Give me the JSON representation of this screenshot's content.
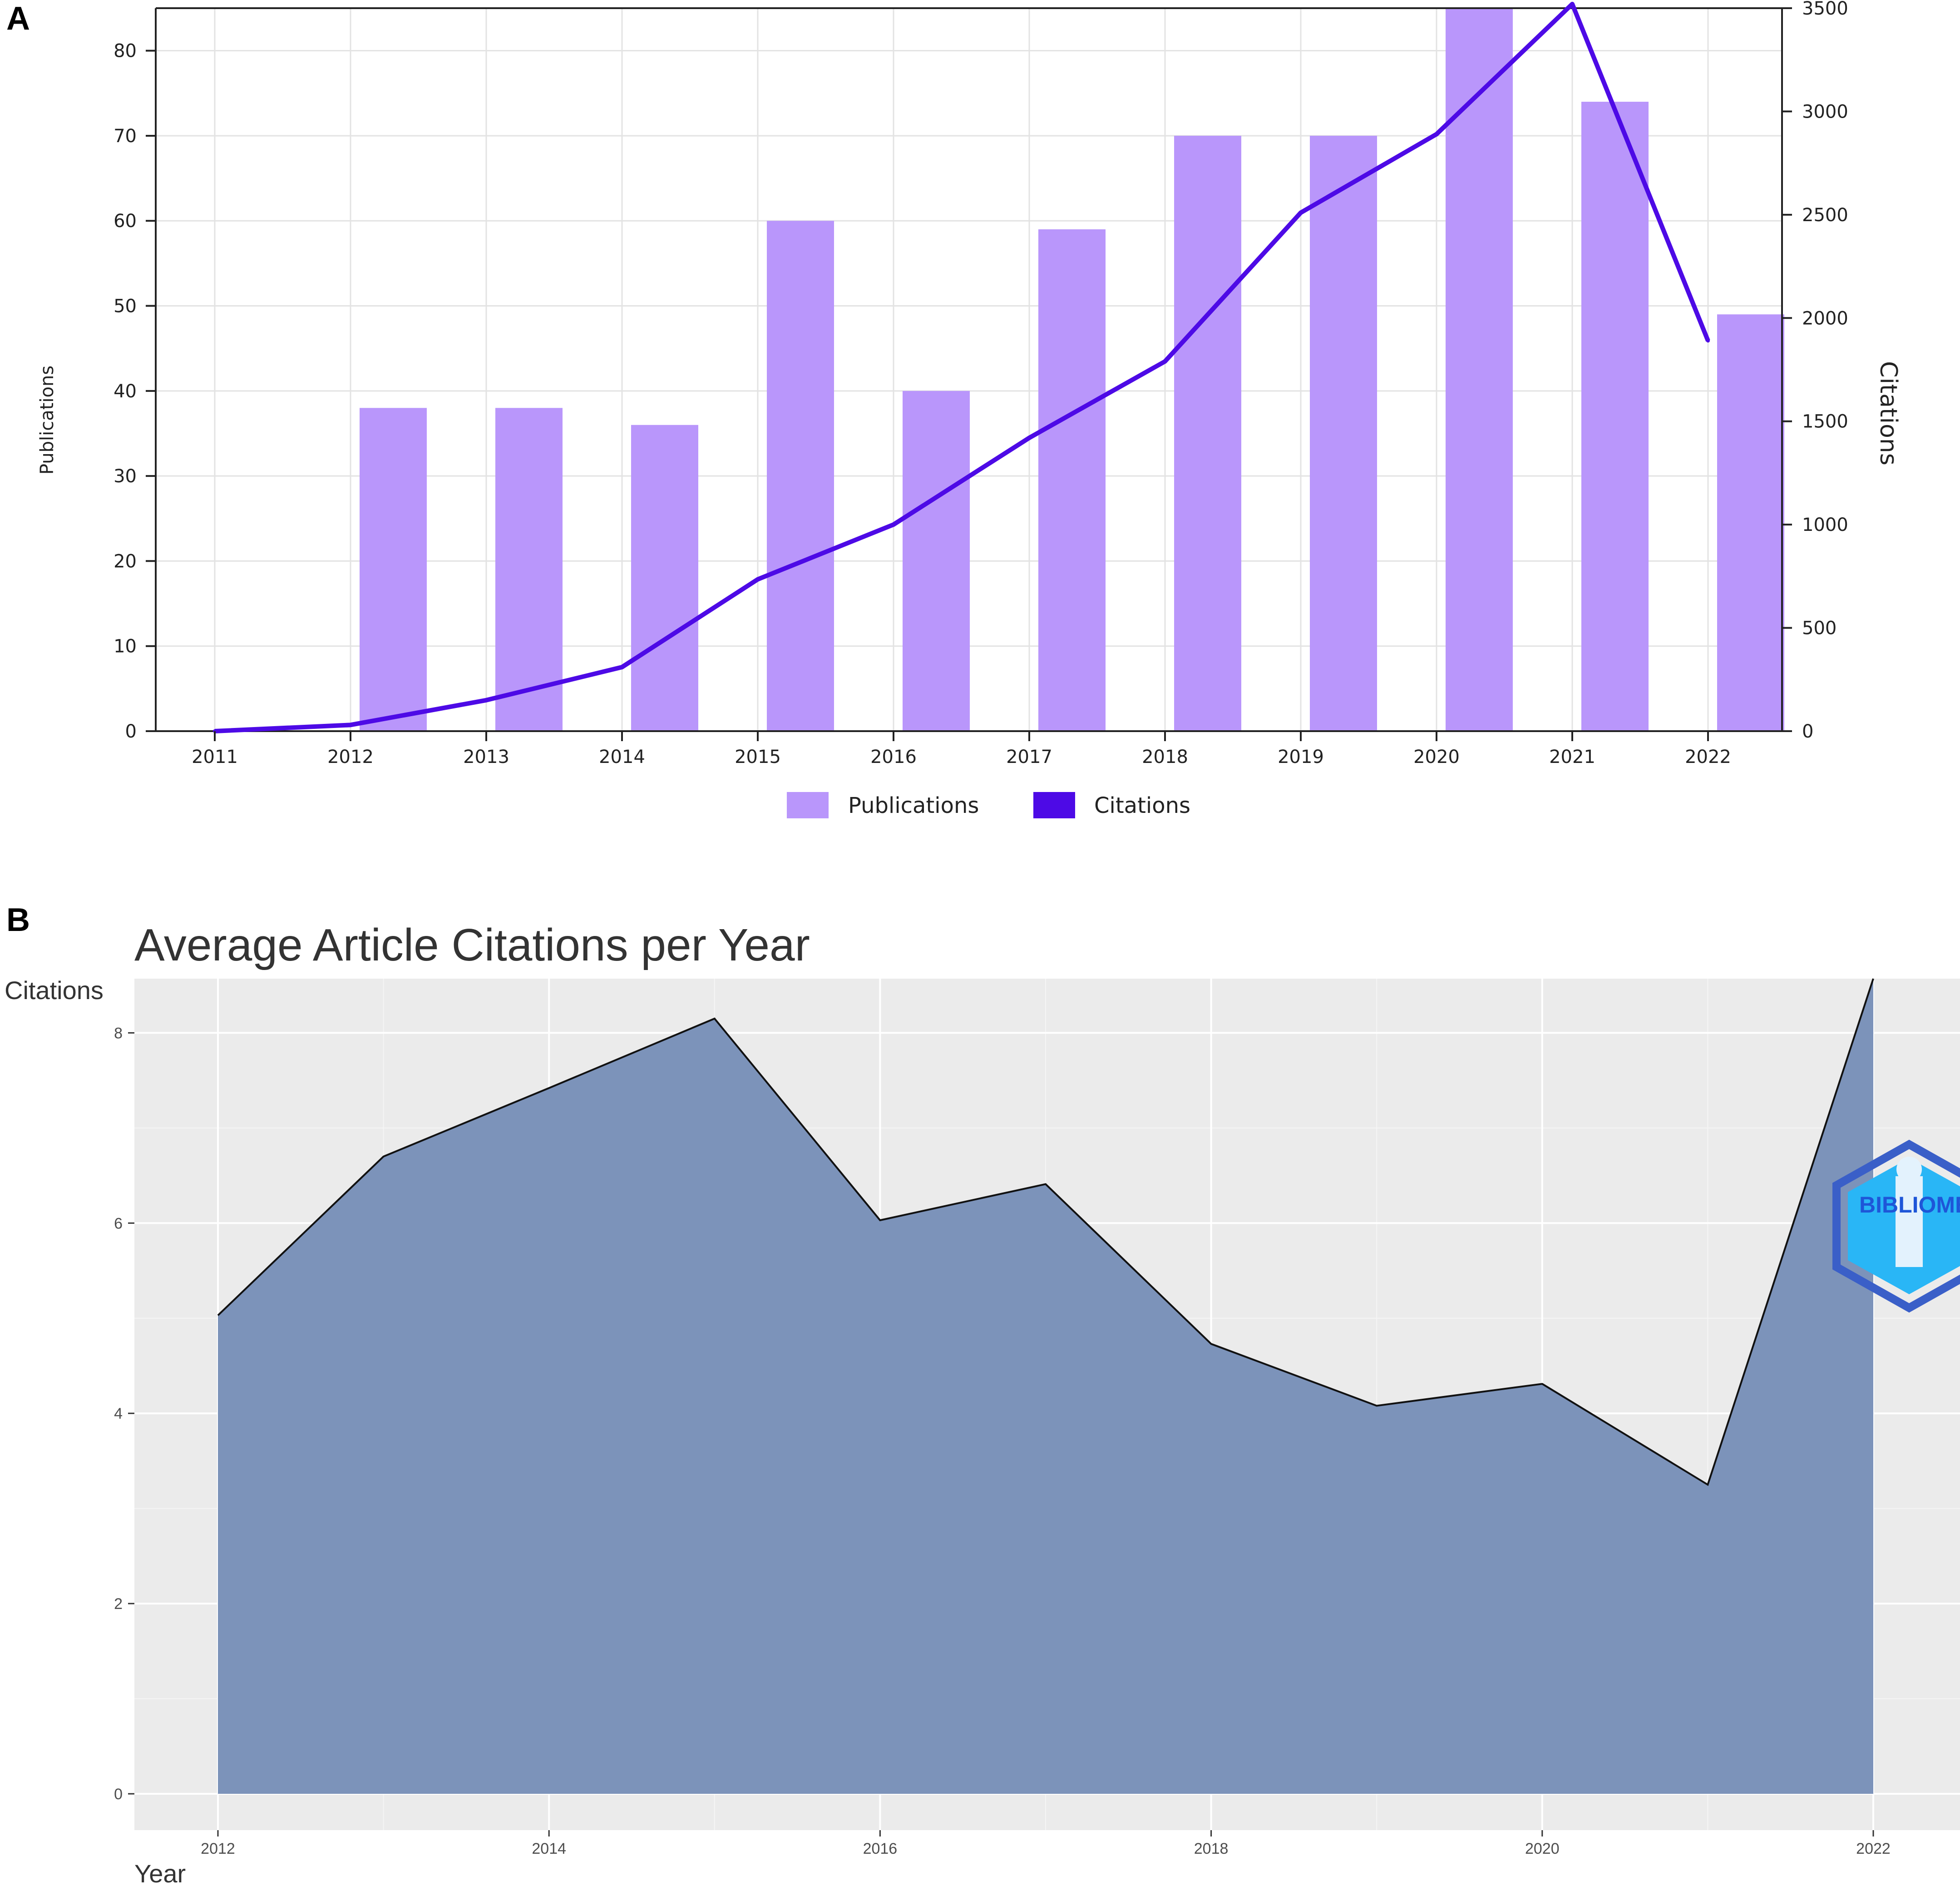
{
  "panels": {
    "a_label": "A",
    "b_label": "B"
  },
  "colors": {
    "publications": "#b996fb",
    "citations": "#4d0ae6",
    "area_fill": "#7890b8",
    "panel_bg": "#ebebeb",
    "logo": "#1e88e5"
  },
  "logo": {
    "text": "BIBLIOME",
    "icon": "biblioshiny-logo-icon"
  },
  "chart_data": [
    {
      "type": "bar",
      "title": "",
      "categories": [
        "2011",
        "2012",
        "2013",
        "2014",
        "2015",
        "2016",
        "2017",
        "2018",
        "2019",
        "2020",
        "2021",
        "2022"
      ],
      "series": [
        {
          "name": "Publications",
          "type": "bar",
          "axis": "left",
          "values": [
            0,
            38,
            38,
            36,
            60,
            40,
            59,
            70,
            70,
            85,
            74,
            49
          ]
        },
        {
          "name": "Citations",
          "type": "line",
          "axis": "right",
          "values": [
            0,
            30,
            150,
            310,
            735,
            1000,
            1420,
            1790,
            2510,
            2890,
            3520,
            1890
          ]
        }
      ],
      "ylabel": "Publications",
      "y2label": "Citations",
      "ylim": [
        0,
        85
      ],
      "yticks": [
        0,
        10,
        20,
        30,
        40,
        50,
        60,
        70,
        80
      ],
      "y2lim": [
        0,
        3500
      ],
      "y2ticks": [
        0,
        500,
        1000,
        1500,
        2000,
        2500,
        3000,
        3500
      ],
      "grid": true,
      "legend": "bottom-center"
    },
    {
      "type": "area",
      "title": "Average Article Citations per Year",
      "xlabel": "Year",
      "ylabel": "Citations",
      "x": [
        2012,
        2013,
        2014,
        2015,
        2016,
        2017,
        2018,
        2019,
        2020,
        2021,
        2022
      ],
      "values": [
        5.03,
        6.7,
        7.42,
        8.15,
        6.03,
        6.41,
        4.73,
        4.08,
        4.31,
        3.25,
        8.57
      ],
      "xticks": [
        "2012",
        "2014",
        "2016",
        "2018",
        "2020",
        "2022"
      ],
      "yticks": [
        "0",
        "2",
        "4",
        "6",
        "8"
      ],
      "xlim": [
        2011.5,
        2022.5
      ],
      "ylim": [
        0,
        8.57
      ],
      "grid": true
    }
  ]
}
